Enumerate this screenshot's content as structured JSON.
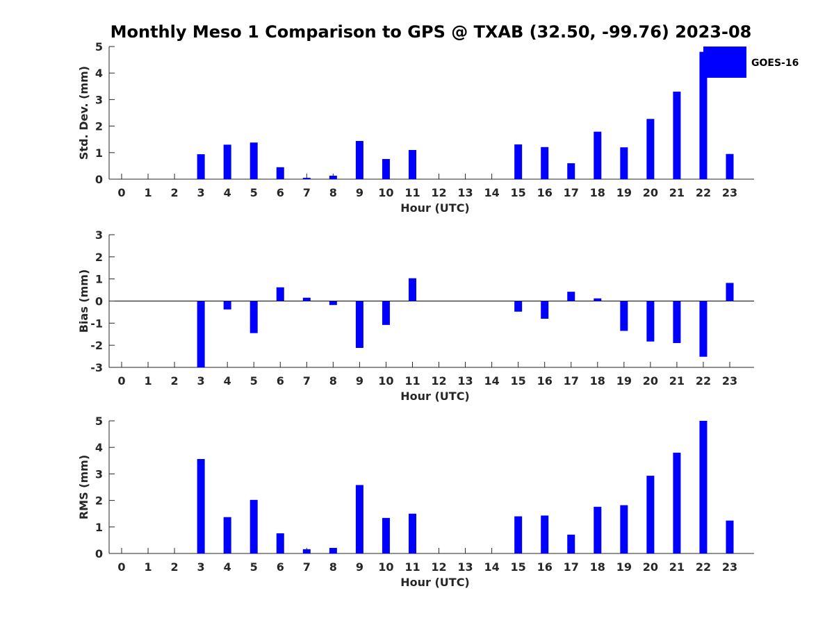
{
  "title": "Monthly Meso 1 Comparison to GPS @ TXAB (32.50, -99.76) 2023-08",
  "colors": {
    "bar": "#0000ff",
    "axis": "#262626"
  },
  "legend": {
    "label": "GOES-16",
    "placement": "top-right"
  },
  "chart_data": [
    {
      "type": "bar",
      "name": "std-dev",
      "xlabel": "Hour (UTC)",
      "ylabel": "Std. Dev. (mm)",
      "ylim": [
        0,
        5
      ],
      "yticks": [
        0,
        1,
        2,
        3,
        4,
        5
      ],
      "categories": [
        "0",
        "1",
        "2",
        "3",
        "4",
        "5",
        "6",
        "7",
        "8",
        "9",
        "10",
        "11",
        "12",
        "13",
        "14",
        "15",
        "16",
        "17",
        "18",
        "19",
        "20",
        "21",
        "22",
        "23"
      ],
      "values": [
        0,
        0,
        0,
        0.94,
        1.3,
        1.38,
        0.45,
        0.05,
        0.13,
        1.44,
        0.76,
        1.1,
        0,
        0,
        0,
        1.31,
        1.21,
        0.6,
        1.79,
        1.2,
        2.27,
        3.3,
        4.8,
        0.95
      ]
    },
    {
      "type": "bar",
      "name": "bias",
      "xlabel": "Hour (UTC)",
      "ylabel": "Bias (mm)",
      "ylim": [
        -3,
        3
      ],
      "yticks": [
        -3,
        -2,
        -1,
        0,
        1,
        2,
        3
      ],
      "categories": [
        "0",
        "1",
        "2",
        "3",
        "4",
        "5",
        "6",
        "7",
        "8",
        "9",
        "10",
        "11",
        "12",
        "13",
        "14",
        "15",
        "16",
        "17",
        "18",
        "19",
        "20",
        "21",
        "22",
        "23"
      ],
      "values": [
        0,
        0,
        0,
        -3.0,
        -0.38,
        -1.45,
        0.62,
        0.15,
        -0.18,
        -2.12,
        -1.08,
        1.03,
        0,
        0,
        0,
        -0.48,
        -0.8,
        0.42,
        0.12,
        -1.35,
        -1.83,
        -1.9,
        -2.52,
        0.82
      ]
    },
    {
      "type": "bar",
      "name": "rms",
      "xlabel": "Hour (UTC)",
      "ylabel": "RMS (mm)",
      "ylim": [
        0,
        5
      ],
      "yticks": [
        0,
        1,
        2,
        3,
        4,
        5
      ],
      "categories": [
        "0",
        "1",
        "2",
        "3",
        "4",
        "5",
        "6",
        "7",
        "8",
        "9",
        "10",
        "11",
        "12",
        "13",
        "14",
        "15",
        "16",
        "17",
        "18",
        "19",
        "20",
        "21",
        "22",
        "23"
      ],
      "values": [
        0,
        0,
        0,
        3.56,
        1.37,
        2.02,
        0.76,
        0.16,
        0.21,
        2.58,
        1.34,
        1.5,
        0,
        0,
        0,
        1.4,
        1.43,
        0.71,
        1.76,
        1.82,
        2.93,
        3.8,
        5.0,
        1.24
      ]
    }
  ]
}
